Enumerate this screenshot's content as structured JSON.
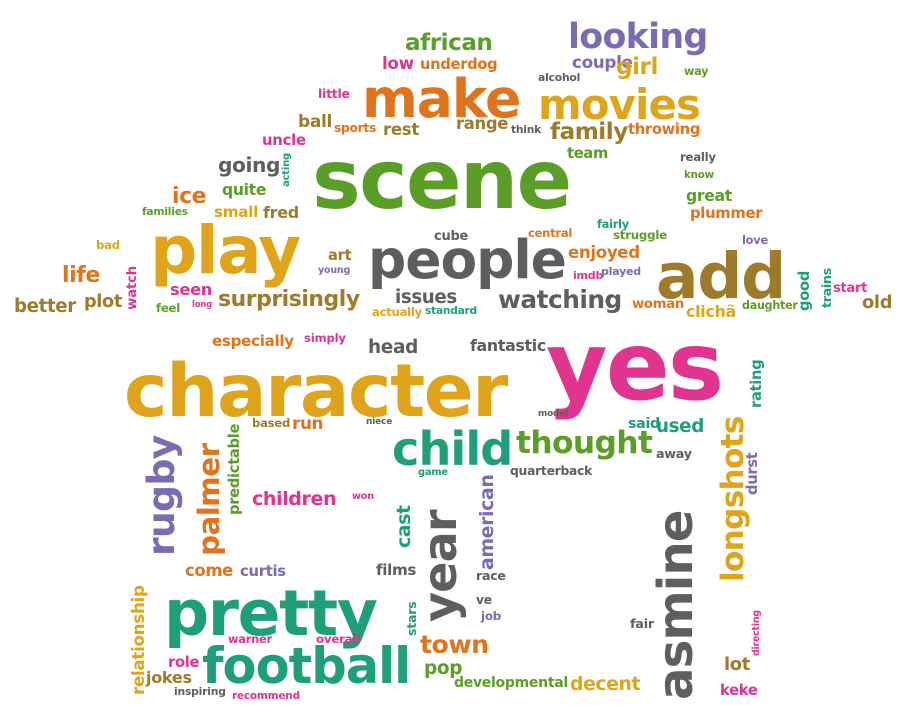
{
  "colors": {
    "green": "#5a9e28",
    "orange": "#e0731b",
    "gold": "#dfa41a",
    "purple": "#7a6bb2",
    "pink": "#e0348e",
    "teal": "#1e9e79",
    "gray": "#5e5e5e",
    "brown": "#9e7a2a"
  },
  "words": [
    {
      "text": "african",
      "color": "green"
    },
    {
      "text": "looking",
      "color": "purple"
    },
    {
      "text": "low",
      "color": "pink"
    },
    {
      "text": "underdog",
      "color": "orange"
    },
    {
      "text": "couple",
      "color": "purple"
    },
    {
      "text": "girl",
      "color": "gold"
    },
    {
      "text": "way",
      "color": "green"
    },
    {
      "text": "alcohol",
      "color": "gray"
    },
    {
      "text": "make",
      "color": "orange"
    },
    {
      "text": "little",
      "color": "pink"
    },
    {
      "text": "movies",
      "color": "gold"
    },
    {
      "text": "ball",
      "color": "brown"
    },
    {
      "text": "sports",
      "color": "orange"
    },
    {
      "text": "rest",
      "color": "brown"
    },
    {
      "text": "range",
      "color": "brown"
    },
    {
      "text": "think",
      "color": "gray"
    },
    {
      "text": "family",
      "color": "brown"
    },
    {
      "text": "throwing",
      "color": "orange"
    },
    {
      "text": "uncle",
      "color": "pink"
    },
    {
      "text": "acting",
      "color": "teal"
    },
    {
      "text": "team",
      "color": "green"
    },
    {
      "text": "really",
      "color": "gray"
    },
    {
      "text": "know",
      "color": "green"
    },
    {
      "text": "going",
      "color": "gray"
    },
    {
      "text": "scene",
      "color": "green"
    },
    {
      "text": "quite",
      "color": "green"
    },
    {
      "text": "ice",
      "color": "orange"
    },
    {
      "text": "great",
      "color": "green"
    },
    {
      "text": "families",
      "color": "green"
    },
    {
      "text": "small",
      "color": "gold"
    },
    {
      "text": "fred",
      "color": "brown"
    },
    {
      "text": "fairly",
      "color": "teal"
    },
    {
      "text": "plummer",
      "color": "orange"
    },
    {
      "text": "cube",
      "color": "gray"
    },
    {
      "text": "central",
      "color": "orange"
    },
    {
      "text": "struggle",
      "color": "green"
    },
    {
      "text": "bad",
      "color": "gold"
    },
    {
      "text": "play",
      "color": "gold"
    },
    {
      "text": "people",
      "color": "gray"
    },
    {
      "text": "enjoyed",
      "color": "orange"
    },
    {
      "text": "love",
      "color": "purple"
    },
    {
      "text": "art",
      "color": "brown"
    },
    {
      "text": "add",
      "color": "brown"
    },
    {
      "text": "life",
      "color": "orange"
    },
    {
      "text": "watch",
      "color": "pink"
    },
    {
      "text": "young",
      "color": "purple"
    },
    {
      "text": "imdb",
      "color": "pink"
    },
    {
      "text": "played",
      "color": "purple"
    },
    {
      "text": "good",
      "color": "teal"
    },
    {
      "text": "trains",
      "color": "teal"
    },
    {
      "text": "start",
      "color": "pink"
    },
    {
      "text": "seen",
      "color": "pink"
    },
    {
      "text": "better",
      "color": "brown"
    },
    {
      "text": "plot",
      "color": "brown"
    },
    {
      "text": "surprisingly",
      "color": "brown"
    },
    {
      "text": "issues",
      "color": "gray"
    },
    {
      "text": "watching",
      "color": "gray"
    },
    {
      "text": "old",
      "color": "brown"
    },
    {
      "text": "feel",
      "color": "green"
    },
    {
      "text": "long",
      "color": "pink"
    },
    {
      "text": "actually",
      "color": "gold"
    },
    {
      "text": "standard",
      "color": "teal"
    },
    {
      "text": "woman",
      "color": "orange"
    },
    {
      "text": "clichã",
      "color": "gold"
    },
    {
      "text": "daughter",
      "color": "green"
    },
    {
      "text": "especially",
      "color": "orange"
    },
    {
      "text": "simply",
      "color": "pink"
    },
    {
      "text": "head",
      "color": "gray"
    },
    {
      "text": "fantastic",
      "color": "gray"
    },
    {
      "text": "character",
      "color": "gold"
    },
    {
      "text": "yes",
      "color": "pink"
    },
    {
      "text": "rating",
      "color": "teal"
    },
    {
      "text": "rugby",
      "color": "purple"
    },
    {
      "text": "palmer",
      "color": "orange"
    },
    {
      "text": "predictable",
      "color": "green"
    },
    {
      "text": "based",
      "color": "brown"
    },
    {
      "text": "run",
      "color": "orange"
    },
    {
      "text": "niece",
      "color": "gray"
    },
    {
      "text": "model",
      "color": "gray"
    },
    {
      "text": "child",
      "color": "teal"
    },
    {
      "text": "thought",
      "color": "green"
    },
    {
      "text": "said",
      "color": "teal"
    },
    {
      "text": "used",
      "color": "teal"
    },
    {
      "text": "longshots",
      "color": "gold"
    },
    {
      "text": "away",
      "color": "gray"
    },
    {
      "text": "durst",
      "color": "purple"
    },
    {
      "text": "game",
      "color": "teal"
    },
    {
      "text": "american",
      "color": "purple"
    },
    {
      "text": "quarterback",
      "color": "gray"
    },
    {
      "text": "asmine",
      "color": "gray"
    },
    {
      "text": "children",
      "color": "pink"
    },
    {
      "text": "won",
      "color": "pink"
    },
    {
      "text": "cast",
      "color": "teal"
    },
    {
      "text": "year",
      "color": "gray"
    },
    {
      "text": "come",
      "color": "orange"
    },
    {
      "text": "curtis",
      "color": "purple"
    },
    {
      "text": "films",
      "color": "gray"
    },
    {
      "text": "race",
      "color": "gray"
    },
    {
      "text": "pretty",
      "color": "teal"
    },
    {
      "text": "relationship",
      "color": "gold"
    },
    {
      "text": "stars",
      "color": "teal"
    },
    {
      "text": "ve",
      "color": "gray"
    },
    {
      "text": "job",
      "color": "purple"
    },
    {
      "text": "fair",
      "color": "gray"
    },
    {
      "text": "directing",
      "color": "pink"
    },
    {
      "text": "warner",
      "color": "pink"
    },
    {
      "text": "overall",
      "color": "pink"
    },
    {
      "text": "town",
      "color": "orange"
    },
    {
      "text": "role",
      "color": "pink"
    },
    {
      "text": "football",
      "color": "teal"
    },
    {
      "text": "pop",
      "color": "green"
    },
    {
      "text": "lot",
      "color": "brown"
    },
    {
      "text": "jokes",
      "color": "brown"
    },
    {
      "text": "inspiring",
      "color": "gray"
    },
    {
      "text": "recommend",
      "color": "pink"
    },
    {
      "text": "developmental",
      "color": "green"
    },
    {
      "text": "decent",
      "color": "gold"
    },
    {
      "text": "keke",
      "color": "pink"
    }
  ]
}
